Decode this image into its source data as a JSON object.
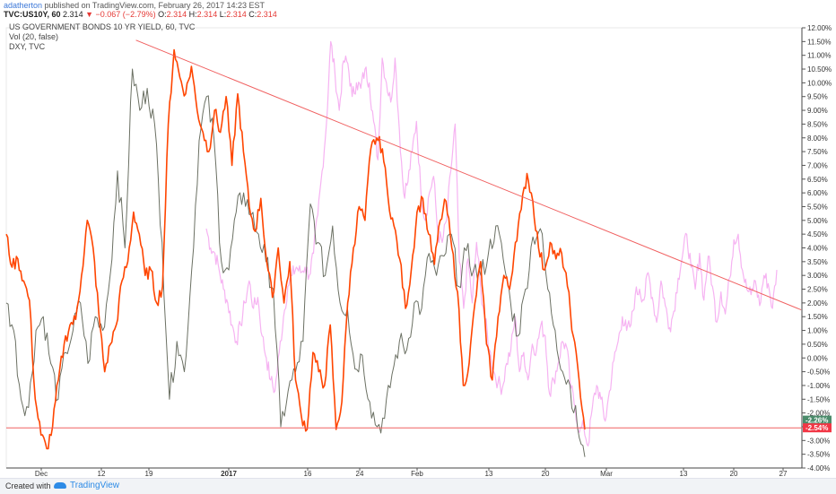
{
  "header": {
    "author": "adatherton",
    "published_text": " published on TradingView.com, February 26, 2017 14:23 EST"
  },
  "quote": {
    "symbol": "TVC:US10Y, 60",
    "last": "2.314",
    "change": "−0.067 (−2.79%)",
    "o_label": "O:",
    "o": "2.314",
    "h_label": "H:",
    "h": "2.314",
    "l_label": "L:",
    "l": "2.314",
    "c_label": "C:",
    "c": "2.314"
  },
  "legend": {
    "line1": "US GOVERNMENT BONDS 10 YR YIELD, 60, TVC",
    "line2": "Vol (20, false)",
    "line3": "DXY, TVC"
  },
  "footer": {
    "created": "Created with",
    "brand": "TradingView"
  },
  "chart_data": {
    "type": "line",
    "ylim": [
      -4.0,
      12.0
    ],
    "y_ticks": [
      "12.00%",
      "11.50%",
      "11.00%",
      "10.50%",
      "10.00%",
      "9.50%",
      "9.00%",
      "8.50%",
      "8.00%",
      "7.50%",
      "7.00%",
      "6.50%",
      "6.00%",
      "5.50%",
      "5.00%",
      "4.50%",
      "4.00%",
      "3.50%",
      "3.00%",
      "2.50%",
      "2.00%",
      "1.50%",
      "1.00%",
      "0.50%",
      "0.00%",
      "-0.50%",
      "-1.00%",
      "-1.50%",
      "-2.00%",
      "-2.50%",
      "-3.00%",
      "-3.50%",
      "-4.00%"
    ],
    "x_ticks": [
      "Dec",
      "12",
      "19",
      "2017",
      "16",
      "24",
      "Feb",
      "13",
      "20",
      "Mar",
      "13",
      "20",
      "27"
    ],
    "price_badges": [
      {
        "label": "-2.26%",
        "color": "#4c8c6c"
      },
      {
        "label": "-2.54%",
        "color": "#f23645"
      }
    ],
    "colors": {
      "orange": "#ff4500",
      "pink": "#f6b3f2",
      "candles": "#6b7063",
      "trendline": "#f06060"
    },
    "series": [
      {
        "name": "US GOVERNMENT BONDS 10 YR YIELD, 60, TVC",
        "values": [
          4.5,
          3.3,
          3.6,
          2.8,
          2.1,
          -1.5,
          -2.8,
          -3.3,
          -2.5,
          -0.8,
          0.5,
          1.2,
          1.4,
          3.0,
          5.0,
          4.0,
          1.6,
          -0.5,
          0.5,
          1.2,
          2.8,
          3.5,
          5.3,
          4.5,
          3.0,
          3.2,
          2.0,
          2.6,
          8.5,
          11.2,
          10.2,
          9.6,
          10.6,
          9.0,
          8.2,
          7.5,
          9.0,
          8.2,
          9.5,
          7.0,
          9.6,
          7.5,
          5.5,
          4.6,
          5.8,
          3.5,
          2.2,
          4.0,
          2.0,
          3.5,
          -0.8,
          -2.1,
          -2.6,
          0.2,
          -0.5,
          -1.0,
          1.2,
          -2.6,
          -1.6,
          2.0,
          4.0,
          5.5,
          5.0,
          7.6,
          8.0,
          7.6,
          5.8,
          4.8,
          3.6,
          1.8,
          3.2,
          5.3,
          5.8,
          4.5,
          3.4,
          5.0,
          5.7,
          4.0,
          2.4,
          -1.0,
          -0.2,
          2.0,
          3.5,
          0.5,
          -0.8,
          1.5,
          3.0,
          2.5,
          4.2,
          5.4,
          6.7,
          5.7,
          4.0,
          3.2,
          4.2,
          3.6,
          3.8,
          2.6,
          0.8,
          -0.8,
          -2.6
        ]
      },
      {
        "name": "DXY, TVC",
        "values": [
          4.7,
          4.0,
          3.8,
          3.2,
          2.5,
          2.0,
          1.2,
          0.6,
          1.2,
          2.0,
          2.8,
          1.8,
          2.2,
          0.8,
          0.0,
          -0.8,
          -1.2,
          0.2,
          1.5,
          2.6,
          3.0,
          3.3,
          3.1,
          3.3,
          3.0,
          3.8,
          5.2,
          6.8,
          8.5,
          11.5,
          10.3,
          9.0,
          10.8,
          10.7,
          9.5,
          10.0,
          9.8,
          10.5,
          10.0,
          8.6,
          7.2,
          10.9,
          10.0,
          9.3,
          10.9,
          8.3,
          6.0,
          6.4,
          7.5,
          8.6,
          6.1,
          5.0,
          6.0,
          6.6,
          4.5,
          4.2,
          5.0,
          6.8,
          8.5,
          3.5,
          1.8,
          3.6,
          2.0,
          4.2,
          2.5,
          1.4,
          0.3,
          -0.5,
          -0.9,
          -1.1,
          -0.2,
          0.3,
          1.5,
          -0.5,
          0.2,
          -0.8,
          0.5,
          0.3,
          1.2,
          0.8,
          -1.3,
          -0.8,
          -0.2,
          0.6,
          0.4,
          -1.1,
          -1.8,
          -2.7,
          -2.5,
          -3.2,
          -1.8,
          -1.0,
          -1.5,
          -2.3,
          -1.2,
          -0.1,
          0.6,
          1.5,
          1.0,
          1.2,
          2.3,
          2.5,
          2.1,
          3.1,
          2.2,
          1.3,
          2.8,
          1.9,
          1.1,
          1.7,
          2.9,
          3.7,
          4.5,
          3.3,
          2.5,
          3.8,
          2.1,
          3.7,
          2.6,
          1.3,
          2.4,
          1.6,
          2.9,
          4.3,
          4.5,
          3.2,
          2.5,
          2.3,
          2.8,
          1.9,
          3.0,
          2.7,
          1.8,
          3.2
        ]
      },
      {
        "name": "",
        "values": [
          2.0,
          1.0,
          -1.5,
          -1.8,
          1.0,
          1.5,
          -0.2,
          -1.5,
          0.2,
          1.0,
          2.0,
          -0.2,
          1.5,
          1.0,
          3.0,
          6.8,
          4.0,
          10.5,
          9.0,
          9.8,
          8.5,
          4.2,
          -1.5,
          0.6,
          -0.5,
          3.2,
          7.9,
          9.5,
          8.0,
          3.5,
          3.2,
          5.3,
          6.0,
          5.2,
          4.5,
          3.5,
          2.5,
          -2.5,
          -1.2,
          -0.5,
          0.6,
          5.6,
          4.2,
          3.0,
          4.8,
          2.0,
          1.8,
          -0.4,
          0.1,
          -1.6,
          -2.5,
          -2.2,
          -0.6,
          0.6,
          0.3,
          2.0,
          1.8,
          3.8,
          3.0,
          3.7,
          4.5,
          2.6,
          3.9,
          3.2,
          3.0,
          3.8,
          4.8,
          3.6,
          2.0,
          0.8,
          2.5,
          4.4,
          4.7,
          2.5,
          1.0,
          -0.5,
          -1.0,
          -2.5,
          -3.6
        ]
      }
    ],
    "annotations": [
      {
        "type": "trendline",
        "from": [
          0.163,
          11.55
        ],
        "to": [
          0.999,
          1.75
        ]
      },
      {
        "type": "hline",
        "y": -2.54
      }
    ]
  }
}
